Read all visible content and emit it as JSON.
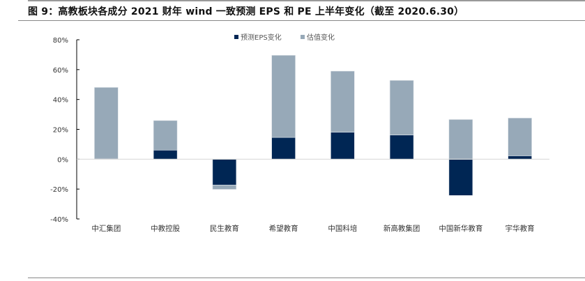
{
  "chart_data": {
    "type": "bar",
    "stacked": true,
    "title": "图 9：高教板块各成分 2021 财年 wind 一致预测 EPS 和 PE 上半年变化（截至 2020.6.30）",
    "categories": [
      "中汇集团",
      "中教控股",
      "民生教育",
      "希望教育",
      "中国科培",
      "新高教集团",
      "中国新华教育",
      "宇华教育"
    ],
    "series": [
      {
        "name": "预测EPS变化",
        "color": "#002654",
        "values": [
          0.5,
          6.1,
          -17.3,
          14.6,
          18.1,
          16.2,
          -24.3,
          2.3
        ]
      },
      {
        "name": "估值变化",
        "color": "#97a9b8",
        "values": [
          47.6,
          19.8,
          -2.9,
          55.0,
          40.9,
          36.6,
          26.6,
          25.3
        ]
      }
    ],
    "ylim": [
      -40,
      80
    ],
    "yticks": [
      "-40%",
      "-20%",
      "0%",
      "20%",
      "40%",
      "60%",
      "80%"
    ],
    "legend": "top-center",
    "grid": false
  }
}
